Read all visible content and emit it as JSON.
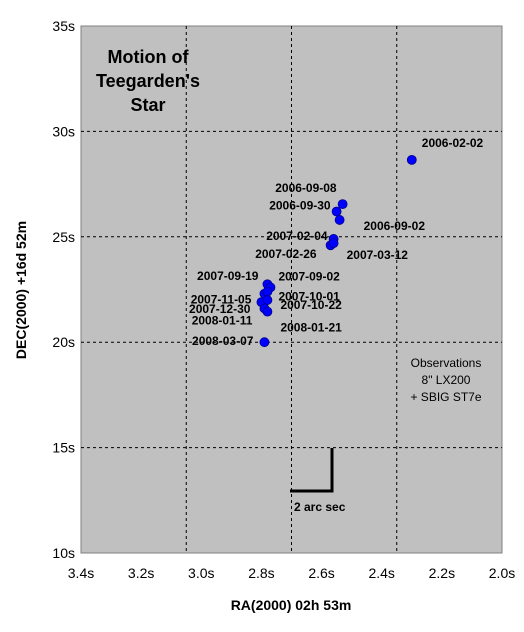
{
  "chart_data": {
    "type": "scatter",
    "title_lines": [
      "Motion of",
      "Teegarden's",
      "Star"
    ],
    "xlabel": "RA(2000) 02h 53m",
    "ylabel": "DEC(2000) +16d 52m",
    "xlim": [
      3.4,
      2.0
    ],
    "ylim": [
      10,
      35
    ],
    "x_reversed": true,
    "x_ticks": [
      "3.4s",
      "3.2s",
      "3.0s",
      "2.8s",
      "2.6s",
      "2.4s",
      "2.2s",
      "2.0s"
    ],
    "y_ticks": [
      "35s",
      "30s",
      "25s",
      "20s",
      "15s",
      "10s"
    ],
    "background": "#c0c0c0",
    "marker_color": "#0000ff",
    "grid": "dashed",
    "points": [
      {
        "label": "2006-02-02",
        "x": 2.3,
        "y": 28.65
      },
      {
        "label": "2006-09-08",
        "x": 2.53,
        "y": 26.55
      },
      {
        "label": "2006-09-30",
        "x": 2.55,
        "y": 26.2
      },
      {
        "label": "2006-09-02",
        "x": 2.54,
        "y": 25.8
      },
      {
        "label": "2007-02-04",
        "x": 2.56,
        "y": 24.9
      },
      {
        "label": "2007-02-26",
        "x": 2.57,
        "y": 24.6
      },
      {
        "label": "2007-03-12",
        "x": 2.56,
        "y": 24.7
      },
      {
        "label": "2007-09-19",
        "x": 2.78,
        "y": 22.75
      },
      {
        "label": "2007-09-02",
        "x": 2.77,
        "y": 22.6
      },
      {
        "label": "2007-11-05",
        "x": 2.79,
        "y": 22.3
      },
      {
        "label": "2007-10-01",
        "x": 2.78,
        "y": 22.4
      },
      {
        "label": "2007-12-30",
        "x": 2.8,
        "y": 21.9
      },
      {
        "label": "2007-10-22",
        "x": 2.78,
        "y": 22.0
      },
      {
        "label": "2008-01-11",
        "x": 2.79,
        "y": 21.6
      },
      {
        "label": "2008-01-21",
        "x": 2.78,
        "y": 21.45
      },
      {
        "label": "2008-03-07",
        "x": 2.79,
        "y": 20.0
      }
    ],
    "scale_bar_label": "2 arc sec",
    "notes": [
      "Observations",
      "8\" LX200",
      "+ SBIG ST7e"
    ]
  }
}
